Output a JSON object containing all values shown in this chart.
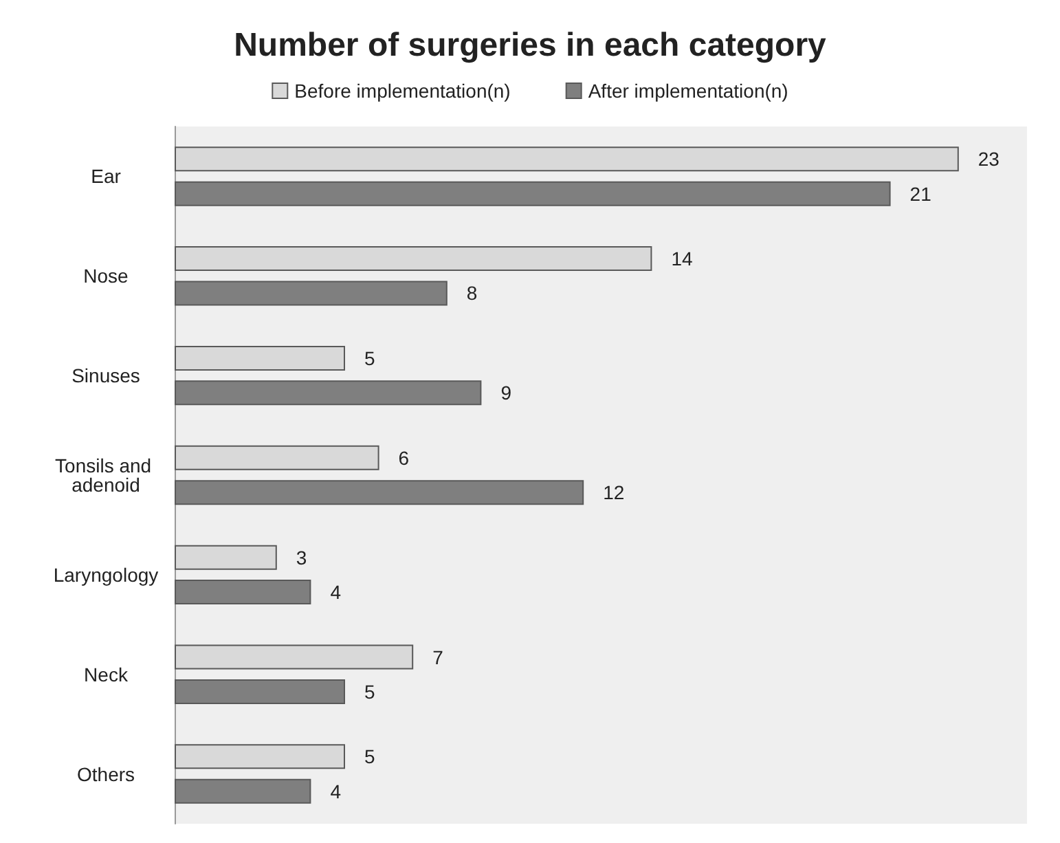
{
  "chart_data": {
    "type": "bar",
    "orientation": "horizontal",
    "title": "Number of surgeries in each category",
    "categories": [
      "Ear",
      "Nose",
      "Sinuses",
      "Tonsils and adenoid",
      "Laryngology",
      "Neck",
      "Others"
    ],
    "series": [
      {
        "name": "Before implementation(n)",
        "color": "#d9d9d9",
        "values": [
          23,
          14,
          5,
          6,
          3,
          7,
          5
        ]
      },
      {
        "name": "After implementation(n)",
        "color": "#7f7f7f",
        "values": [
          21,
          8,
          9,
          12,
          4,
          5,
          4
        ]
      }
    ],
    "data_labels": true,
    "legend": "top",
    "grid": false,
    "tick_labels": "y"
  }
}
